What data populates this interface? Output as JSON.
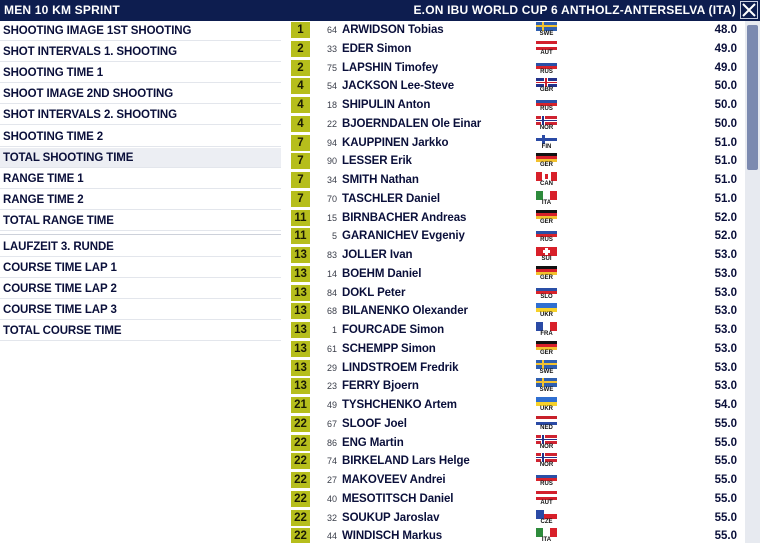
{
  "header": {
    "title_left": "MEN 10 KM SPRINT",
    "title_right": "E.ON IBU WORLD CUP 6 ANTHOLZ-ANTERSELVA (ITA)",
    "close_icon": "close-icon"
  },
  "menu": {
    "groups": [
      [
        "SHOOTING IMAGE 1ST SHOOTING",
        "SHOT INTERVALS 1. SHOOTING",
        "SHOOTING TIME 1",
        "SHOOT IMAGE 2ND SHOOTING",
        "SHOT INTERVALS 2. SHOOTING",
        "SHOOTING TIME 2",
        "TOTAL SHOOTING TIME",
        "RANGE TIME 1",
        "RANGE TIME 2",
        "TOTAL RANGE TIME"
      ],
      [
        "LAUFZEIT 3. RUNDE",
        "COURSE TIME LAP 1",
        "COURSE TIME LAP 2",
        "COURSE TIME LAP 3",
        "TOTAL COURSE TIME"
      ]
    ],
    "active": "TOTAL SHOOTING TIME"
  },
  "colors": {
    "header_bg": "#0d1d4f",
    "rank_box": "#b6be1c",
    "text_dark": "#0a0f3a",
    "scrollbar_thumb": "#7c8ab0"
  },
  "results": [
    {
      "rank": "1",
      "bib": "64",
      "name": "ARWIDSON Tobias",
      "nat": "SWE",
      "time": "48.0"
    },
    {
      "rank": "2",
      "bib": "33",
      "name": "EDER Simon",
      "nat": "AUT",
      "time": "49.0"
    },
    {
      "rank": "2",
      "bib": "75",
      "name": "LAPSHIN Timofey",
      "nat": "RUS",
      "time": "49.0"
    },
    {
      "rank": "4",
      "bib": "54",
      "name": "JACKSON Lee-Steve",
      "nat": "GBR",
      "time": "50.0"
    },
    {
      "rank": "4",
      "bib": "18",
      "name": "SHIPULIN Anton",
      "nat": "RUS",
      "time": "50.0"
    },
    {
      "rank": "4",
      "bib": "22",
      "name": "BJOERNDALEN Ole Einar",
      "nat": "NOR",
      "time": "50.0"
    },
    {
      "rank": "7",
      "bib": "94",
      "name": "KAUPPINEN Jarkko",
      "nat": "FIN",
      "time": "51.0"
    },
    {
      "rank": "7",
      "bib": "90",
      "name": "LESSER Erik",
      "nat": "GER",
      "time": "51.0"
    },
    {
      "rank": "7",
      "bib": "34",
      "name": "SMITH Nathan",
      "nat": "CAN",
      "time": "51.0"
    },
    {
      "rank": "7",
      "bib": "70",
      "name": "TASCHLER Daniel",
      "nat": "ITA",
      "time": "51.0"
    },
    {
      "rank": "11",
      "bib": "15",
      "name": "BIRNBACHER Andreas",
      "nat": "GER",
      "time": "52.0"
    },
    {
      "rank": "11",
      "bib": "5",
      "name": "GARANICHEV Evgeniy",
      "nat": "RUS",
      "time": "52.0"
    },
    {
      "rank": "13",
      "bib": "83",
      "name": "JOLLER Ivan",
      "nat": "SUI",
      "time": "53.0"
    },
    {
      "rank": "13",
      "bib": "14",
      "name": "BOEHM Daniel",
      "nat": "GER",
      "time": "53.0"
    },
    {
      "rank": "13",
      "bib": "84",
      "name": "DOKL Peter",
      "nat": "SLO",
      "time": "53.0"
    },
    {
      "rank": "13",
      "bib": "68",
      "name": "BILANENKO Olexander",
      "nat": "UKR",
      "time": "53.0"
    },
    {
      "rank": "13",
      "bib": "1",
      "name": "FOURCADE Simon",
      "nat": "FRA",
      "time": "53.0"
    },
    {
      "rank": "13",
      "bib": "61",
      "name": "SCHEMPP Simon",
      "nat": "GER",
      "time": "53.0"
    },
    {
      "rank": "13",
      "bib": "29",
      "name": "LINDSTROEM Fredrik",
      "nat": "SWE",
      "time": "53.0"
    },
    {
      "rank": "13",
      "bib": "23",
      "name": "FERRY Bjoern",
      "nat": "SWE",
      "time": "53.0"
    },
    {
      "rank": "21",
      "bib": "49",
      "name": "TYSHCHENKO Artem",
      "nat": "UKR",
      "time": "54.0"
    },
    {
      "rank": "22",
      "bib": "67",
      "name": "SLOOF Joel",
      "nat": "NED",
      "time": "55.0"
    },
    {
      "rank": "22",
      "bib": "86",
      "name": "ENG Martin",
      "nat": "NOR",
      "time": "55.0"
    },
    {
      "rank": "22",
      "bib": "74",
      "name": "BIRKELAND Lars Helge",
      "nat": "NOR",
      "time": "55.0"
    },
    {
      "rank": "22",
      "bib": "27",
      "name": "MAKOVEEV Andrei",
      "nat": "RUS",
      "time": "55.0"
    },
    {
      "rank": "22",
      "bib": "40",
      "name": "MESOTITSCH Daniel",
      "nat": "AUT",
      "time": "55.0"
    },
    {
      "rank": "22",
      "bib": "32",
      "name": "SOUKUP Jaroslav",
      "nat": "CZE",
      "time": "55.0"
    },
    {
      "rank": "22",
      "bib": "44",
      "name": "WINDISCH Markus",
      "nat": "ITA",
      "time": "55.0"
    }
  ]
}
